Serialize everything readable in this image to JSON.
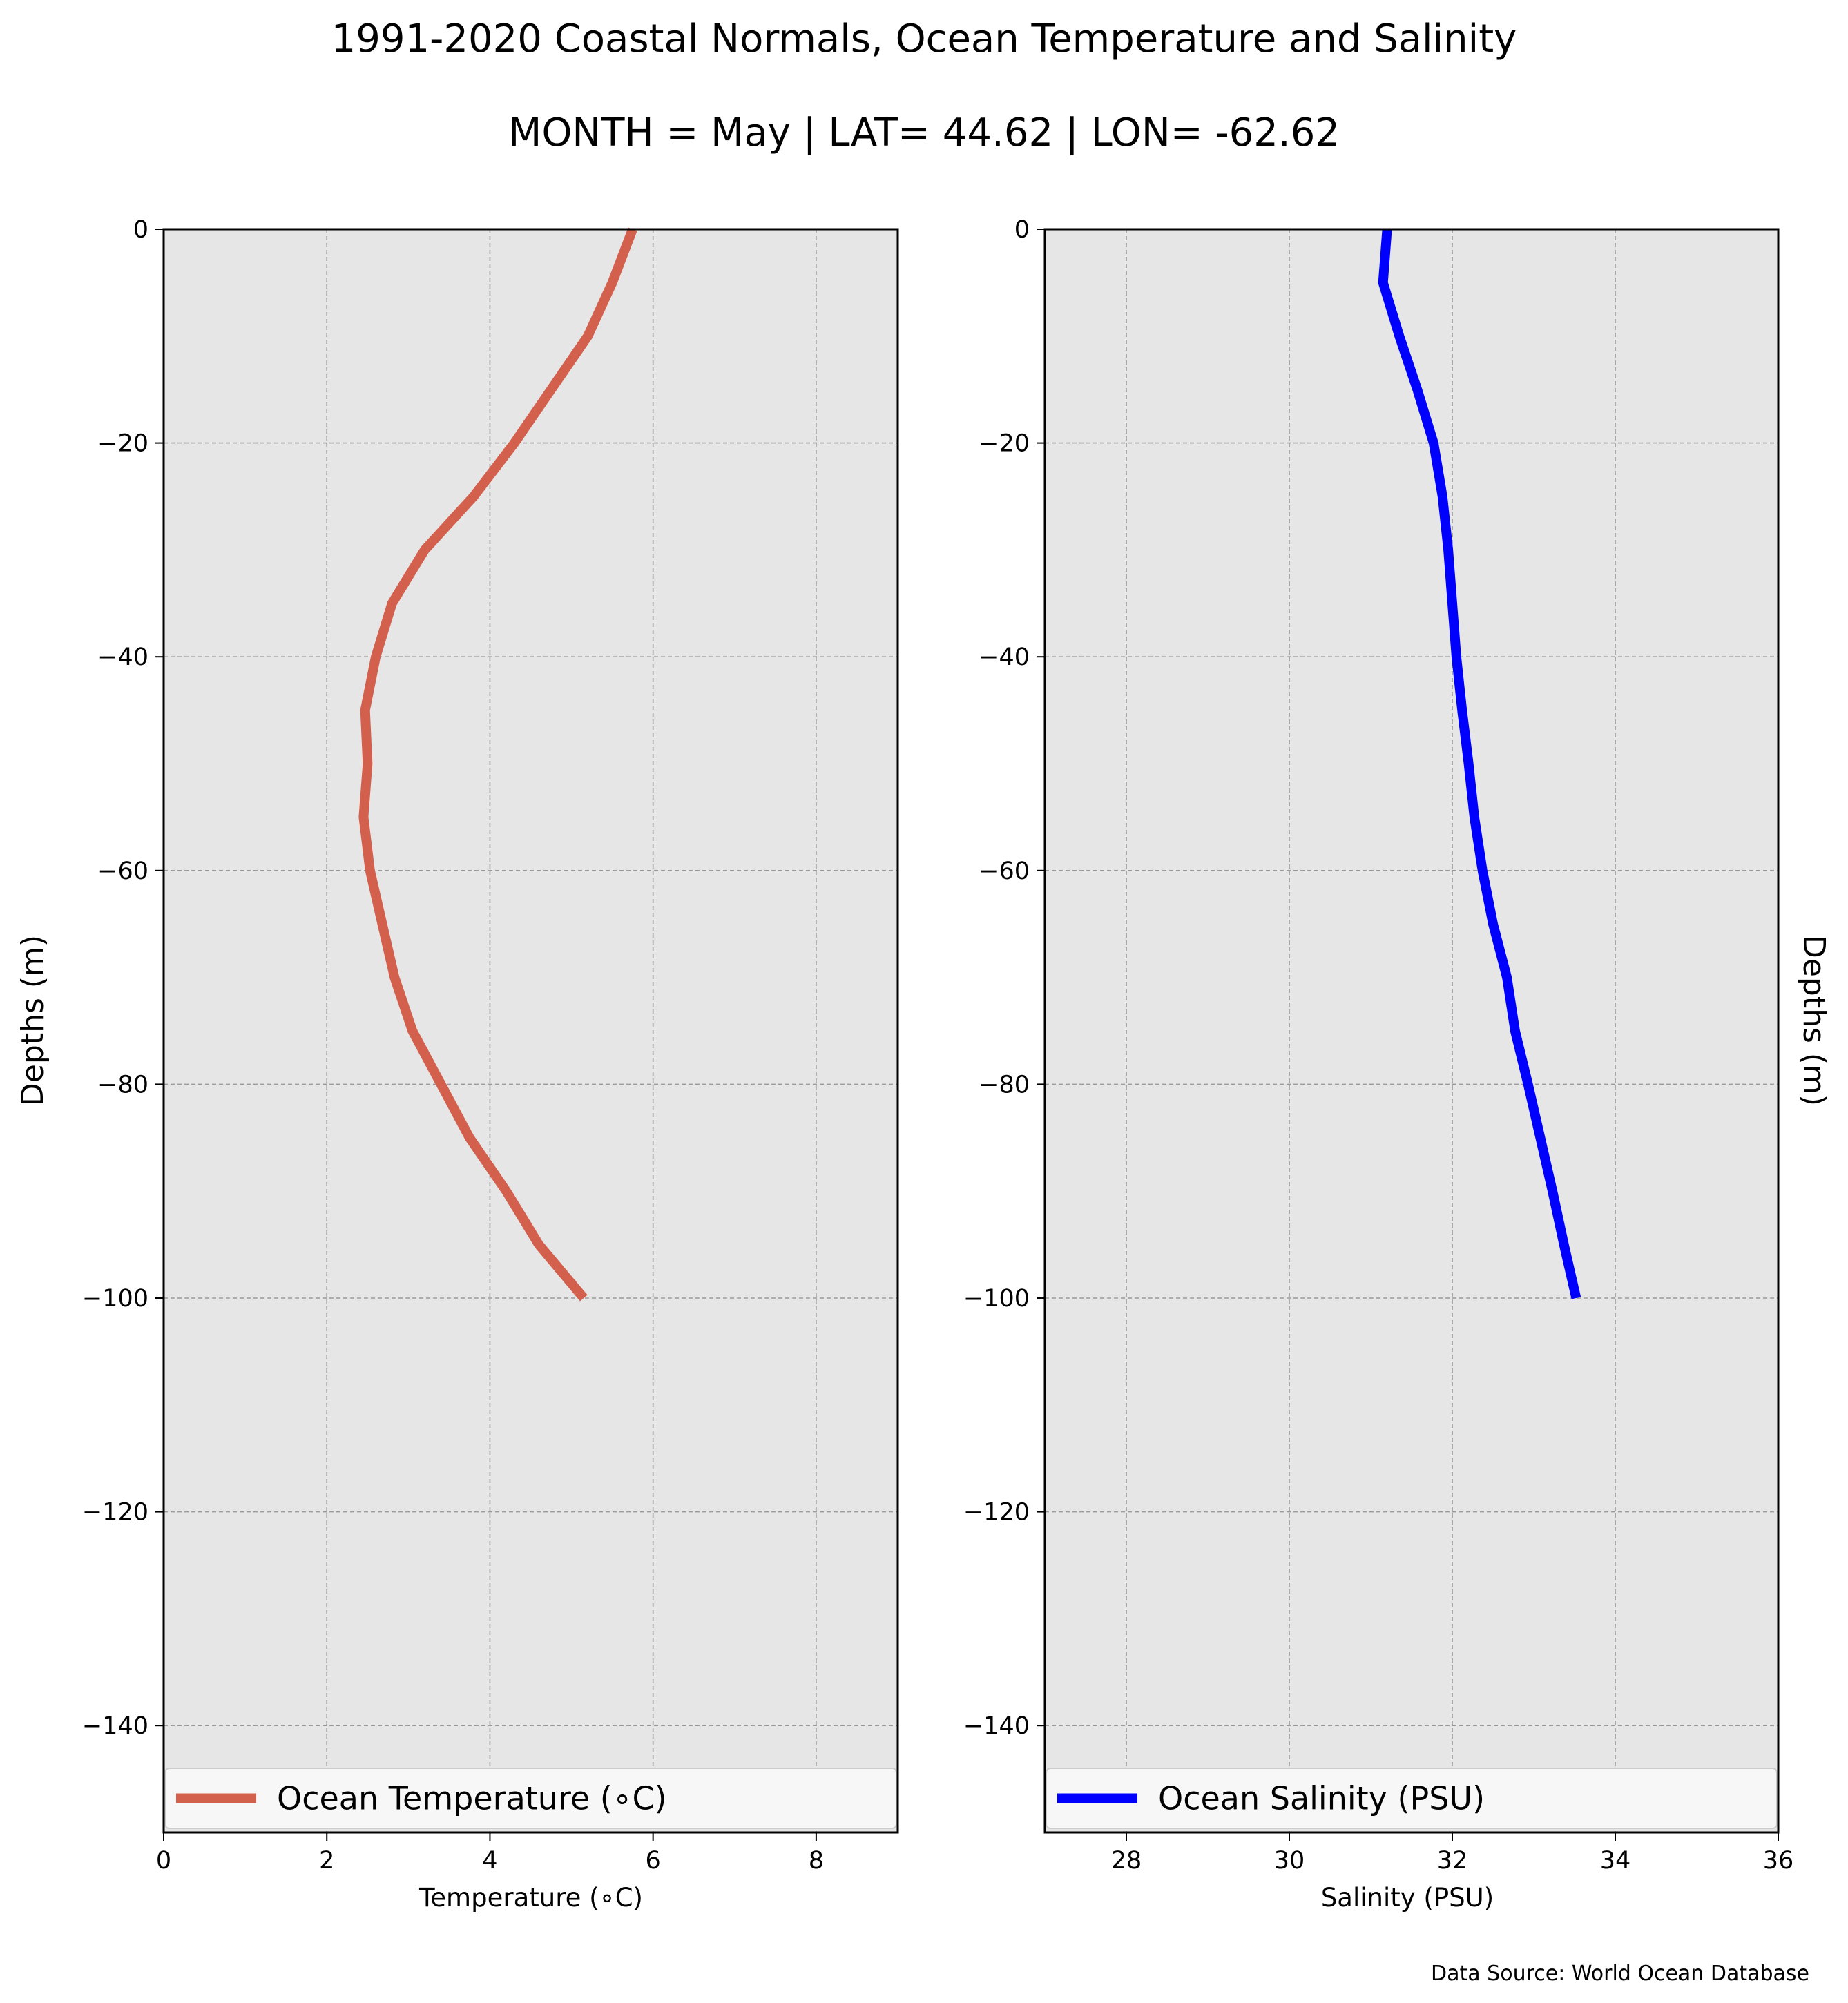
{
  "title": "1991-2020 Coastal Normals, Ocean Temperature and Salinity",
  "subtitle": "MONTH = May | LAT= 44.62 | LON= -62.62",
  "source": "Data Source: World Ocean Database",
  "chart_data": [
    {
      "type": "line",
      "xlabel": "Temperature ($^\\circ$C)",
      "xlabel_display": "Temperature (∘C)",
      "ylabel": "Depths (m)",
      "xlim": [
        0,
        9
      ],
      "ylim": [
        -150,
        0
      ],
      "xticks": [
        0,
        2,
        4,
        6,
        8
      ],
      "xtick_labels": [
        "0",
        "2",
        "4",
        "6",
        "8"
      ],
      "yticks": [
        0,
        -20,
        -40,
        -60,
        -80,
        -100,
        -120,
        -140
      ],
      "ytick_labels": [
        "0",
        "−20",
        "−40",
        "−60",
        "−80",
        "−100",
        "−120",
        "−140"
      ],
      "grid": true,
      "legend_position": "bottom",
      "series": [
        {
          "name": "Ocean Temperature (∘C)",
          "color": "#d35f4d",
          "points": [
            [
              5.75,
              0
            ],
            [
              5.5,
              -5
            ],
            [
              5.2,
              -10
            ],
            [
              4.75,
              -15
            ],
            [
              4.3,
              -20
            ],
            [
              3.8,
              -25
            ],
            [
              3.2,
              -30
            ],
            [
              2.8,
              -35
            ],
            [
              2.6,
              -40
            ],
            [
              2.47,
              -45
            ],
            [
              2.5,
              -50
            ],
            [
              2.45,
              -55
            ],
            [
              2.53,
              -60
            ],
            [
              2.68,
              -65
            ],
            [
              2.83,
              -70
            ],
            [
              3.05,
              -75
            ],
            [
              3.4,
              -80
            ],
            [
              3.75,
              -85
            ],
            [
              4.2,
              -90
            ],
            [
              4.6,
              -95
            ],
            [
              5.15,
              -100
            ]
          ]
        }
      ]
    },
    {
      "type": "line",
      "xlabel": "Salinity (PSU)",
      "ylabel": "Depths (m)",
      "xlim": [
        27,
        36
      ],
      "ylim": [
        -150,
        0
      ],
      "xticks": [
        28,
        30,
        32,
        34,
        36
      ],
      "xtick_labels": [
        "28",
        "30",
        "32",
        "34",
        "36"
      ],
      "yticks": [
        0,
        -20,
        -40,
        -60,
        -80,
        -100,
        -120,
        -140
      ],
      "ytick_labels": [
        "0",
        "−20",
        "−40",
        "−60",
        "−80",
        "−100",
        "−120",
        "−140"
      ],
      "grid": true,
      "legend_position": "bottom",
      "series": [
        {
          "name": "Ocean Salinity (PSU)",
          "color": "#0000ff",
          "points": [
            [
              31.2,
              0
            ],
            [
              31.15,
              -5
            ],
            [
              31.35,
              -10
            ],
            [
              31.57,
              -15
            ],
            [
              31.77,
              -20
            ],
            [
              31.88,
              -25
            ],
            [
              31.95,
              -30
            ],
            [
              32.0,
              -35
            ],
            [
              32.05,
              -40
            ],
            [
              32.12,
              -45
            ],
            [
              32.2,
              -50
            ],
            [
              32.27,
              -55
            ],
            [
              32.37,
              -60
            ],
            [
              32.5,
              -65
            ],
            [
              32.67,
              -70
            ],
            [
              32.77,
              -75
            ],
            [
              32.93,
              -80
            ],
            [
              33.08,
              -85
            ],
            [
              33.23,
              -90
            ],
            [
              33.37,
              -95
            ],
            [
              33.52,
              -100
            ]
          ]
        }
      ]
    }
  ]
}
